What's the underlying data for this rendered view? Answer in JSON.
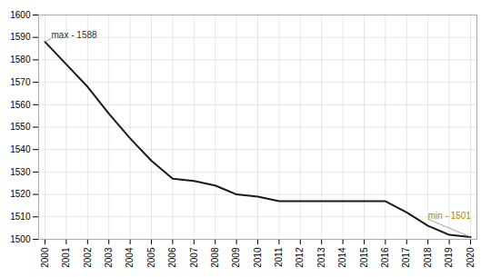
{
  "chart_data": {
    "type": "line",
    "x": [
      2000,
      2001,
      2002,
      2003,
      2004,
      2005,
      2006,
      2007,
      2008,
      2009,
      2010,
      2011,
      2012,
      2013,
      2014,
      2015,
      2016,
      2017,
      2018,
      2019,
      2020
    ],
    "values": [
      1588,
      1578,
      1568,
      1556,
      1545,
      1535,
      1527,
      1526,
      1524,
      1520,
      1519,
      1517,
      1517,
      1517,
      1517,
      1517,
      1517,
      1512,
      1506,
      1502,
      1501
    ],
    "color": "#1a1a1a",
    "xlim": [
      1999.7,
      2020.3
    ],
    "xticks": [
      2000,
      2001,
      2002,
      2003,
      2004,
      2005,
      2006,
      2007,
      2008,
      2009,
      2010,
      2011,
      2012,
      2013,
      2014,
      2015,
      2016,
      2017,
      2018,
      2019,
      2020
    ],
    "ylim": [
      1500,
      1600
    ],
    "yticks": [
      1500,
      1510,
      1520,
      1530,
      1540,
      1550,
      1560,
      1570,
      1580,
      1590,
      1600
    ],
    "grid": true,
    "annotations": [
      {
        "text": "max - 1588",
        "x": 2000,
        "y": 1588,
        "color": "#333333"
      },
      {
        "text": "min - 1501",
        "x": 2020,
        "y": 1501,
        "color": "#b8860b"
      }
    ]
  }
}
